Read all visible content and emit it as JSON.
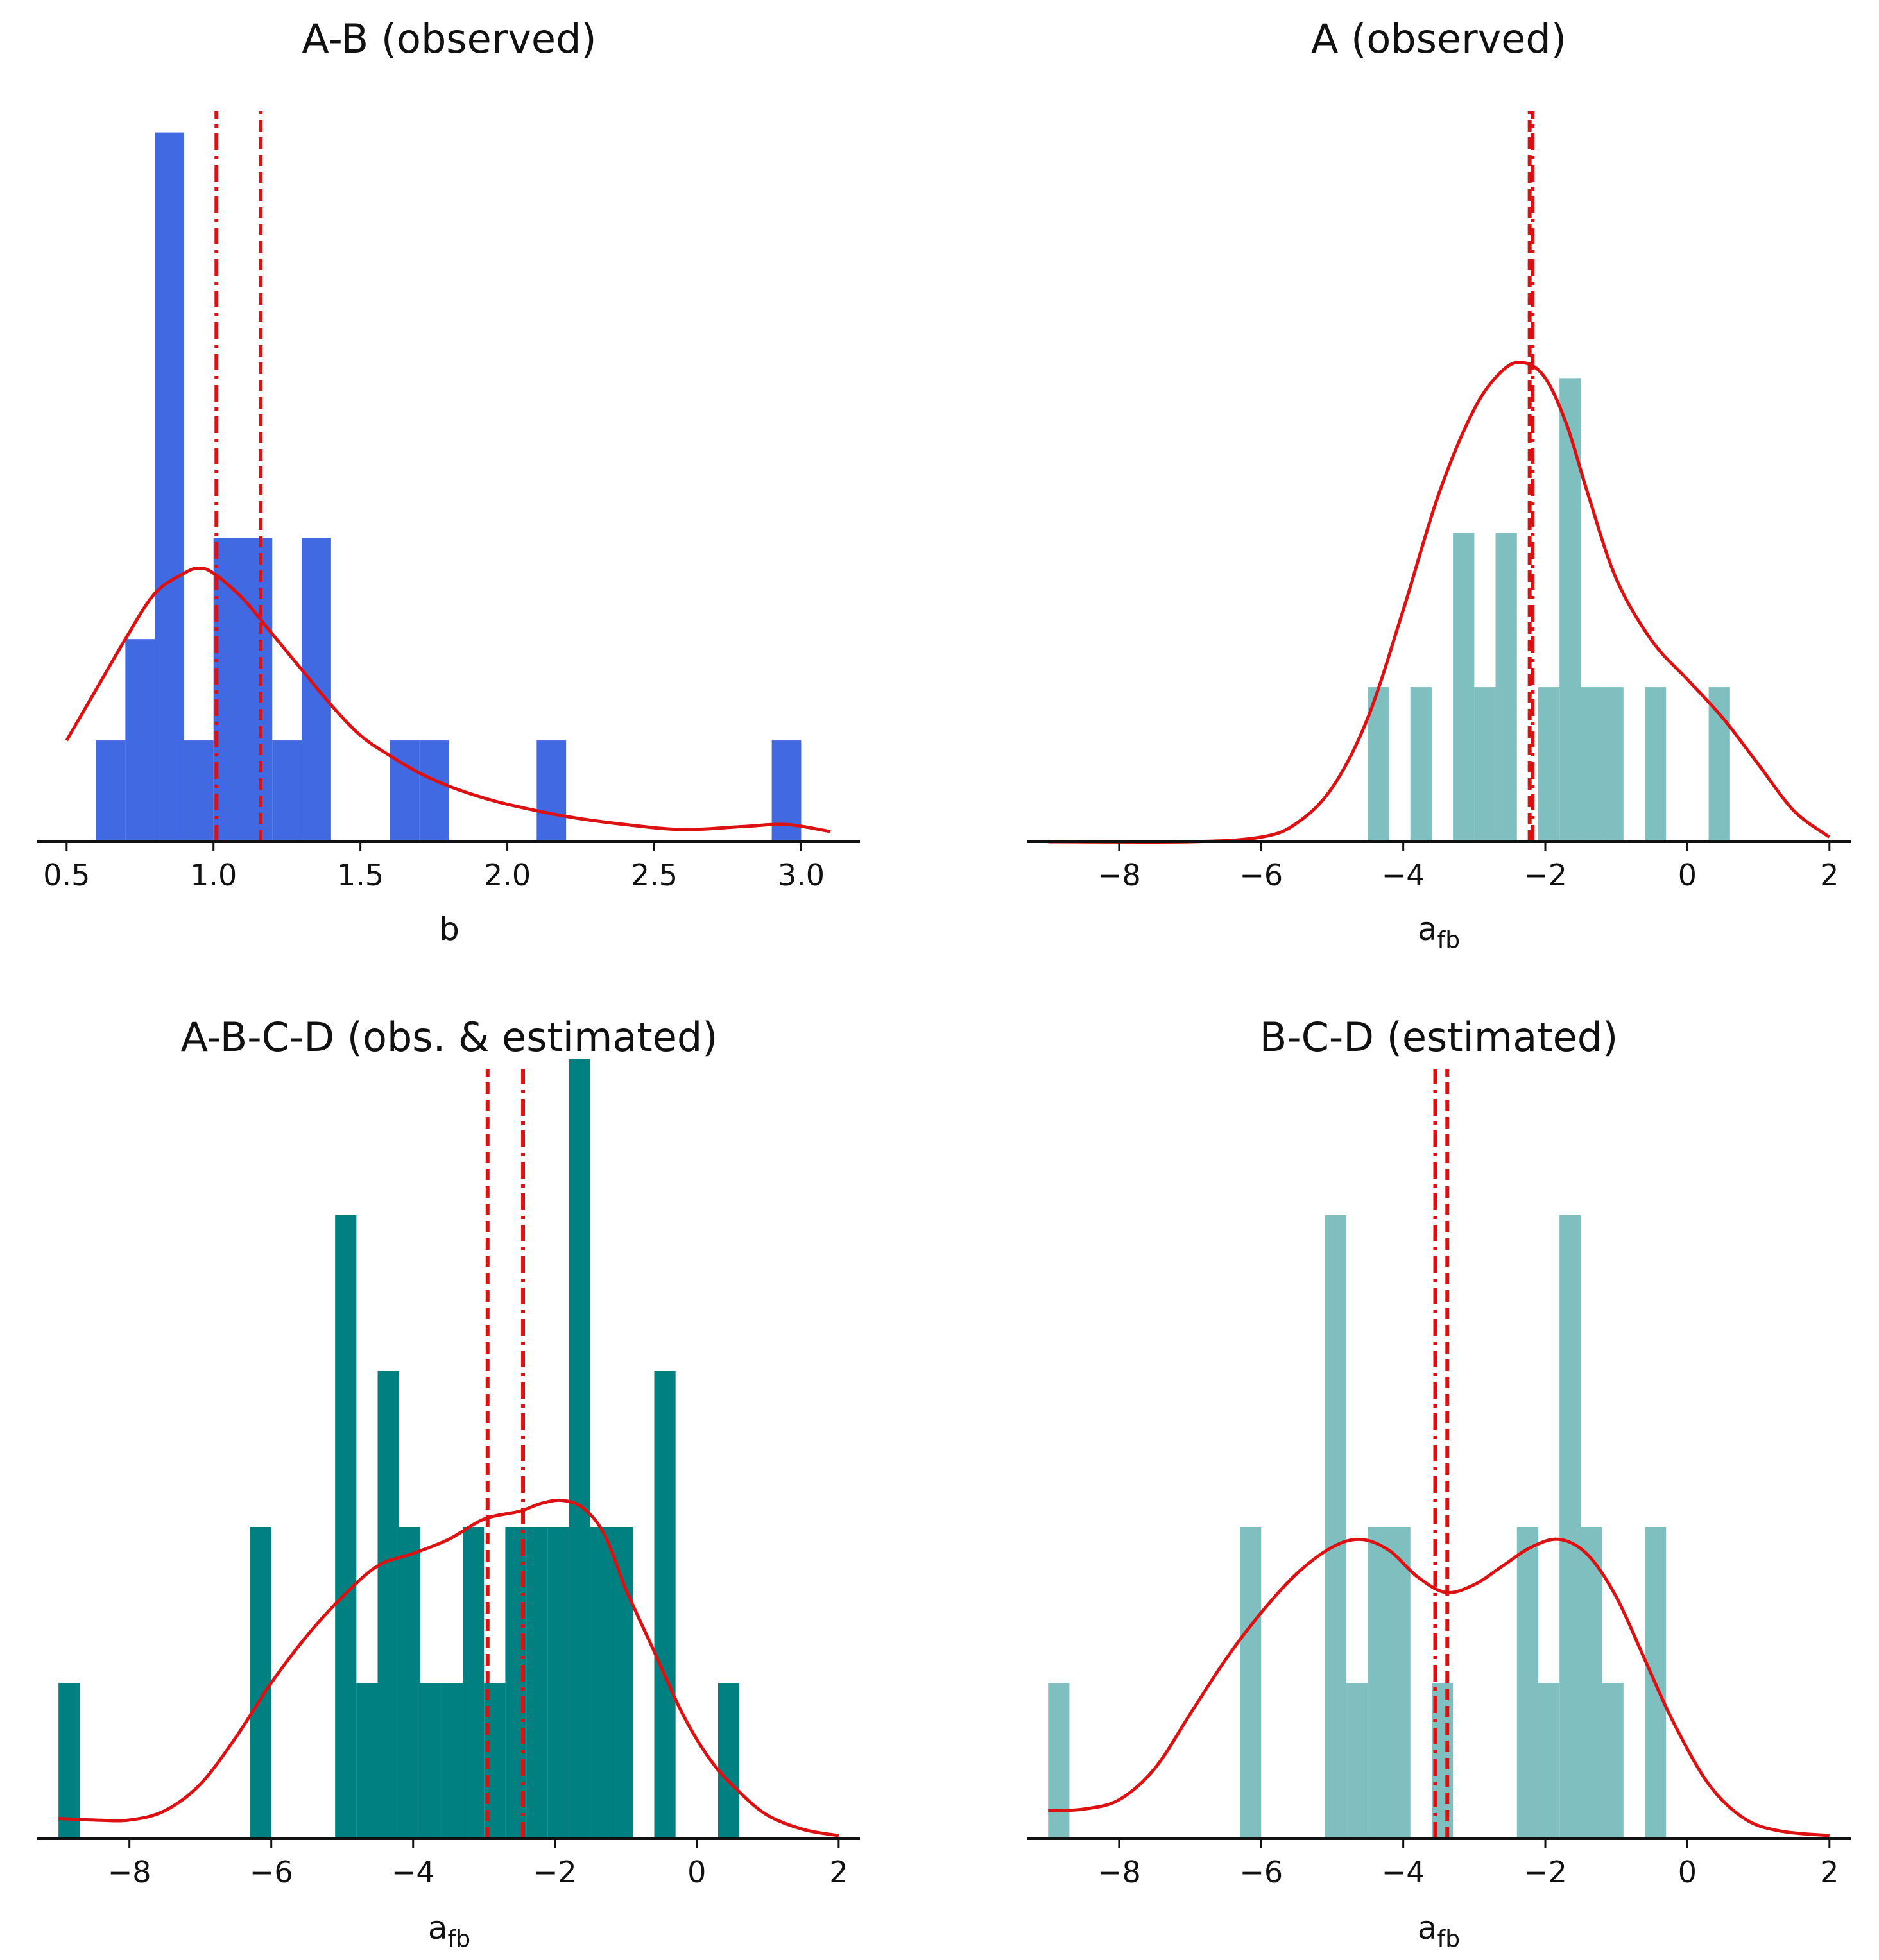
{
  "chart_data": [
    {
      "type": "bar",
      "title": "A-B (observed)",
      "xlabel": "b",
      "xlim": [
        0.4,
        3.2
      ],
      "xticks": [
        0.5,
        1.0,
        1.5,
        2.0,
        2.5,
        3.0
      ],
      "xtick_labels": [
        "0.5",
        "1.0",
        "1.5",
        "2.0",
        "2.5",
        "3.0"
      ],
      "ylim": [
        0,
        7.2
      ],
      "bar_color": "#4169e1",
      "bins": [
        {
          "x0": 0.6,
          "x1": 0.7,
          "count": 1
        },
        {
          "x0": 0.7,
          "x1": 0.8,
          "count": 2
        },
        {
          "x0": 0.8,
          "x1": 0.9,
          "count": 7
        },
        {
          "x0": 0.9,
          "x1": 1.0,
          "count": 1
        },
        {
          "x0": 1.0,
          "x1": 1.1,
          "count": 3
        },
        {
          "x0": 1.1,
          "x1": 1.2,
          "count": 3
        },
        {
          "x0": 1.2,
          "x1": 1.3,
          "count": 1
        },
        {
          "x0": 1.3,
          "x1": 1.4,
          "count": 3
        },
        {
          "x0": 1.6,
          "x1": 1.7,
          "count": 1
        },
        {
          "x0": 1.7,
          "x1": 1.8,
          "count": 1
        },
        {
          "x0": 2.1,
          "x1": 2.2,
          "count": 1
        },
        {
          "x0": 2.9,
          "x1": 3.0,
          "count": 1
        }
      ],
      "kde": {
        "x": [
          0.5,
          0.6,
          0.7,
          0.8,
          0.9,
          0.95,
          1.0,
          1.1,
          1.2,
          1.3,
          1.4,
          1.5,
          1.6,
          1.7,
          1.8,
          1.9,
          2.0,
          2.2,
          2.4,
          2.6,
          2.8,
          2.95,
          3.1
        ],
        "y": [
          1.0,
          1.5,
          2.0,
          2.45,
          2.65,
          2.7,
          2.65,
          2.4,
          2.05,
          1.7,
          1.35,
          1.05,
          0.85,
          0.68,
          0.55,
          0.45,
          0.37,
          0.25,
          0.17,
          0.12,
          0.15,
          0.17,
          0.1
        ]
      },
      "vlines": [
        {
          "x": 1.01,
          "style": "dashdot"
        },
        {
          "x": 1.16,
          "style": "dashed"
        }
      ],
      "line_color": "#dd1111"
    },
    {
      "type": "bar",
      "title": "A (observed)",
      "xlabel_main": "a",
      "xlabel_sub": "fb",
      "xlim": [
        -9.3,
        2.3
      ],
      "xticks": [
        -8,
        -6,
        -4,
        -2,
        0,
        2
      ],
      "xtick_labels": [
        "−8",
        "−6",
        "−4",
        "−2",
        "0",
        "2"
      ],
      "ylim": [
        0,
        4.72
      ],
      "bar_color": "#7fbfbf",
      "bins": [
        {
          "x0": -4.5,
          "x1": -4.2,
          "count": 1
        },
        {
          "x0": -3.9,
          "x1": -3.6,
          "count": 1
        },
        {
          "x0": -3.3,
          "x1": -3.0,
          "count": 2
        },
        {
          "x0": -3.0,
          "x1": -2.7,
          "count": 1
        },
        {
          "x0": -2.7,
          "x1": -2.4,
          "count": 2
        },
        {
          "x0": -2.1,
          "x1": -1.8,
          "count": 1
        },
        {
          "x0": -1.8,
          "x1": -1.5,
          "count": 3
        },
        {
          "x0": -1.5,
          "x1": -1.2,
          "count": 1
        },
        {
          "x0": -1.2,
          "x1": -0.9,
          "count": 1
        },
        {
          "x0": -0.6,
          "x1": -0.3,
          "count": 1
        },
        {
          "x0": 0.3,
          "x1": 0.6,
          "count": 1
        }
      ],
      "kde": {
        "x": [
          -9.0,
          -7.0,
          -6.0,
          -5.5,
          -5.0,
          -4.5,
          -4.0,
          -3.5,
          -3.0,
          -2.6,
          -2.3,
          -2.0,
          -1.7,
          -1.4,
          -1.0,
          -0.5,
          0.0,
          0.5,
          1.0,
          1.5,
          2.0
        ],
        "y": [
          0,
          0,
          0.03,
          0.12,
          0.35,
          0.8,
          1.5,
          2.25,
          2.8,
          3.05,
          3.1,
          3.0,
          2.7,
          2.25,
          1.7,
          1.3,
          1.05,
          0.8,
          0.5,
          0.2,
          0.03
        ]
      },
      "vlines": [
        {
          "x": -2.22,
          "style": "dashed"
        },
        {
          "x": -2.18,
          "style": "dashdot"
        }
      ],
      "line_color": "#dd1111"
    },
    {
      "type": "bar",
      "title": "A-B-C-D (obs. & estimated)",
      "xlabel_main": "a",
      "xlabel_sub": "fb",
      "xlim": [
        -9.3,
        2.3
      ],
      "xticks": [
        -8,
        -6,
        -4,
        -2,
        0,
        2
      ],
      "xtick_labels": [
        "−8",
        "−6",
        "−4",
        "−2",
        "0",
        "2"
      ],
      "ylim": [
        0,
        4.93
      ],
      "bar_color": "#008080",
      "bins": [
        {
          "x0": -9.0,
          "x1": -8.7,
          "count": 1
        },
        {
          "x0": -6.3,
          "x1": -6.0,
          "count": 2
        },
        {
          "x0": -5.1,
          "x1": -4.8,
          "count": 4
        },
        {
          "x0": -4.8,
          "x1": -4.5,
          "count": 1
        },
        {
          "x0": -4.5,
          "x1": -4.2,
          "count": 3
        },
        {
          "x0": -4.2,
          "x1": -3.9,
          "count": 2
        },
        {
          "x0": -3.9,
          "x1": -3.6,
          "count": 1
        },
        {
          "x0": -3.6,
          "x1": -3.3,
          "count": 1
        },
        {
          "x0": -3.3,
          "x1": -3.0,
          "count": 2
        },
        {
          "x0": -3.0,
          "x1": -2.7,
          "count": 1
        },
        {
          "x0": -2.7,
          "x1": -2.4,
          "count": 2
        },
        {
          "x0": -2.4,
          "x1": -2.1,
          "count": 2
        },
        {
          "x0": -2.1,
          "x1": -1.8,
          "count": 2
        },
        {
          "x0": -1.8,
          "x1": -1.5,
          "count": 5
        },
        {
          "x0": -1.5,
          "x1": -1.2,
          "count": 2
        },
        {
          "x0": -1.2,
          "x1": -0.9,
          "count": 2
        },
        {
          "x0": -0.6,
          "x1": -0.3,
          "count": 3
        },
        {
          "x0": 0.3,
          "x1": 0.6,
          "count": 1
        }
      ],
      "kde": {
        "x": [
          -9.0,
          -8.5,
          -8.0,
          -7.5,
          -7.0,
          -6.5,
          -6.0,
          -5.5,
          -5.0,
          -4.5,
          -4.0,
          -3.5,
          -3.0,
          -2.5,
          -2.2,
          -1.9,
          -1.6,
          -1.3,
          -1.0,
          -0.6,
          -0.2,
          0.2,
          0.6,
          1.0,
          1.5,
          2.0
        ],
        "y": [
          0.13,
          0.12,
          0.12,
          0.18,
          0.35,
          0.65,
          1.0,
          1.3,
          1.55,
          1.75,
          1.83,
          1.92,
          2.05,
          2.1,
          2.15,
          2.17,
          2.12,
          1.95,
          1.6,
          1.2,
          0.8,
          0.5,
          0.3,
          0.15,
          0.06,
          0.02
        ]
      },
      "vlines": [
        {
          "x": -2.95,
          "style": "dashed"
        },
        {
          "x": -2.45,
          "style": "dashdot"
        }
      ],
      "line_color": "#dd1111"
    },
    {
      "type": "bar",
      "title": "B-C-D (estimated)",
      "xlabel_main": "a",
      "xlabel_sub": "fb",
      "xlim": [
        -9.3,
        2.3
      ],
      "xticks": [
        -8,
        -6,
        -4,
        -2,
        0,
        2
      ],
      "xtick_labels": [
        "−8",
        "−6",
        "−4",
        "−2",
        "0",
        "2"
      ],
      "ylim": [
        0,
        4.93
      ],
      "bar_color": "#7fbfbf",
      "bins": [
        {
          "x0": -9.0,
          "x1": -8.7,
          "count": 1
        },
        {
          "x0": -6.3,
          "x1": -6.0,
          "count": 2
        },
        {
          "x0": -5.1,
          "x1": -4.8,
          "count": 4
        },
        {
          "x0": -4.8,
          "x1": -4.5,
          "count": 1
        },
        {
          "x0": -4.5,
          "x1": -4.2,
          "count": 2
        },
        {
          "x0": -4.2,
          "x1": -3.9,
          "count": 2
        },
        {
          "x0": -3.6,
          "x1": -3.3,
          "count": 1
        },
        {
          "x0": -2.4,
          "x1": -2.1,
          "count": 2
        },
        {
          "x0": -2.1,
          "x1": -1.8,
          "count": 1
        },
        {
          "x0": -1.8,
          "x1": -1.5,
          "count": 4
        },
        {
          "x0": -1.5,
          "x1": -1.2,
          "count": 2
        },
        {
          "x0": -1.2,
          "x1": -0.9,
          "count": 1
        },
        {
          "x0": -0.6,
          "x1": -0.3,
          "count": 2
        }
      ],
      "kde": {
        "x": [
          -9.0,
          -8.5,
          -8.0,
          -7.5,
          -7.0,
          -6.5,
          -6.0,
          -5.5,
          -5.0,
          -4.6,
          -4.2,
          -3.8,
          -3.4,
          -3.0,
          -2.6,
          -2.2,
          -1.8,
          -1.4,
          -1.0,
          -0.6,
          -0.2,
          0.3,
          0.8,
          1.3,
          2.0
        ],
        "y": [
          0.18,
          0.19,
          0.25,
          0.45,
          0.8,
          1.15,
          1.45,
          1.7,
          1.87,
          1.92,
          1.85,
          1.68,
          1.58,
          1.63,
          1.75,
          1.87,
          1.92,
          1.82,
          1.55,
          1.15,
          0.75,
          0.35,
          0.13,
          0.05,
          0.02
        ]
      },
      "vlines": [
        {
          "x": -3.55,
          "style": "dashdot"
        },
        {
          "x": -3.38,
          "style": "dashed"
        }
      ],
      "line_color": "#dd1111"
    }
  ]
}
